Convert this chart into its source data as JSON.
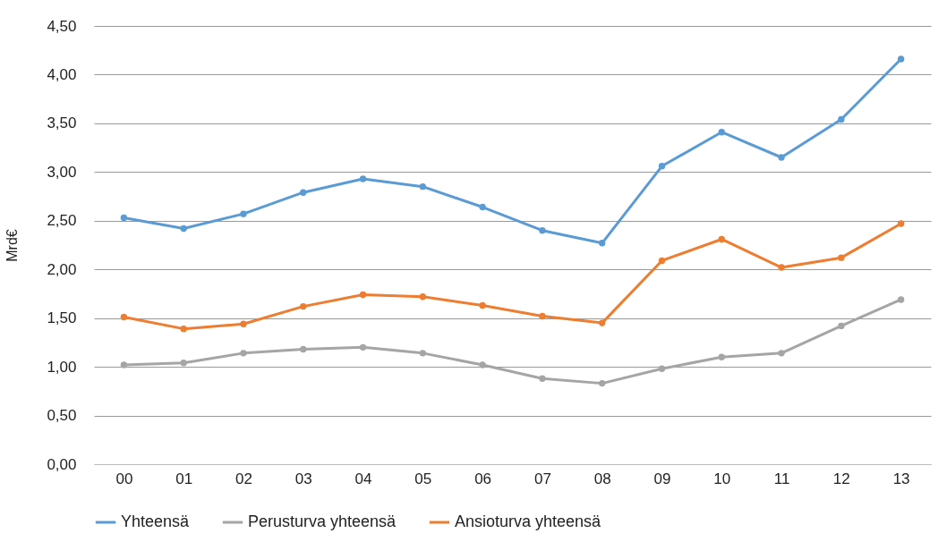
{
  "chart_data": {
    "type": "line",
    "ylabel": "Mrd€",
    "categories": [
      "00",
      "01",
      "02",
      "03",
      "04",
      "05",
      "06",
      "07",
      "08",
      "09",
      "10",
      "11",
      "12",
      "13"
    ],
    "series": [
      {
        "name": "Yhteensä",
        "color": "#5b9bd5",
        "values": [
          2.53,
          2.42,
          2.57,
          2.79,
          2.93,
          2.85,
          2.64,
          2.4,
          2.27,
          3.06,
          3.41,
          3.15,
          3.54,
          4.16
        ]
      },
      {
        "name": "Perusturva yhteensä",
        "color": "#a5a5a5",
        "values": [
          1.02,
          1.04,
          1.14,
          1.18,
          1.2,
          1.14,
          1.02,
          0.88,
          0.83,
          0.98,
          1.1,
          1.14,
          1.42,
          1.69
        ]
      },
      {
        "name": "Ansioturva yhteensä",
        "color": "#ed7d31",
        "values": [
          1.51,
          1.39,
          1.44,
          1.62,
          1.74,
          1.72,
          1.63,
          1.52,
          1.45,
          2.09,
          2.31,
          2.02,
          2.12,
          2.47
        ]
      }
    ],
    "ylim": [
      0,
      4.5
    ],
    "yticks": [
      {
        "value": 0,
        "label": "0,00"
      },
      {
        "value": 0.5,
        "label": "0,50"
      },
      {
        "value": 1,
        "label": "1,00"
      },
      {
        "value": 1.5,
        "label": "1,50"
      },
      {
        "value": 2,
        "label": "2,00"
      },
      {
        "value": 2.5,
        "label": "2,50"
      },
      {
        "value": 3,
        "label": "3,00"
      },
      {
        "value": 3.5,
        "label": "3,50"
      },
      {
        "value": 4,
        "label": "4,00"
      },
      {
        "value": 4.5,
        "label": "4,50"
      }
    ],
    "grid": "y",
    "legend": "bottom",
    "marker": "circle",
    "line_style": "solid"
  }
}
